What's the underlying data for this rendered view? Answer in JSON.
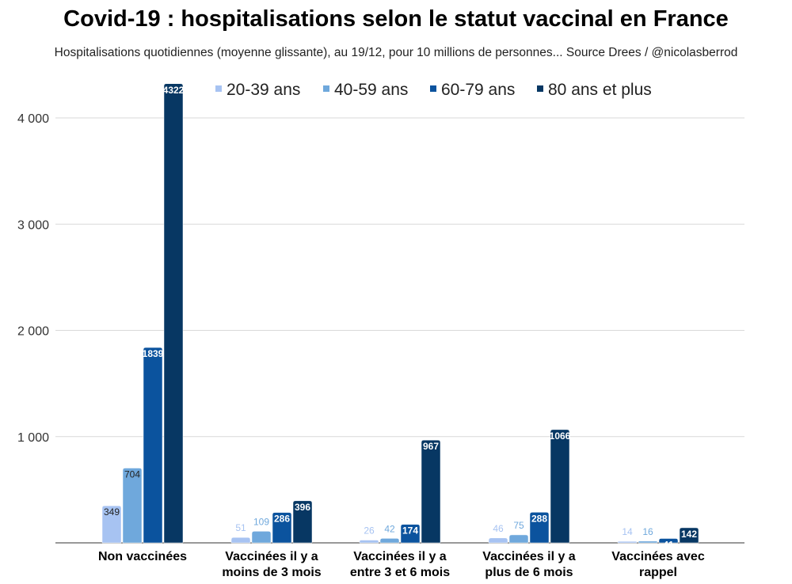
{
  "title": "Covid-19 : hospitalisations selon le statut vaccinal en France",
  "subtitle": "Hospitalisations quotidiennes (moyenne glissante), au 19/12, pour 10 millions de personnes... Source Drees / @nicolasberrod",
  "chart_data": {
    "type": "bar",
    "categories": [
      [
        "Non vaccinées"
      ],
      [
        "Vaccinées il y a",
        "moins de 3 mois"
      ],
      [
        "Vaccinées il y a",
        "entre 3 et 6 mois"
      ],
      [
        "Vaccinées il y a",
        "plus de 6 mois"
      ],
      [
        "Vaccinées avec",
        "rappel"
      ]
    ],
    "series": [
      {
        "name": "20-39 ans",
        "color": "#a7c3f2",
        "values": [
          349,
          51,
          26,
          46,
          14
        ]
      },
      {
        "name": "40-59 ans",
        "color": "#6fa8dc",
        "values": [
          704,
          109,
          42,
          75,
          16
        ]
      },
      {
        "name": "60-79 ans",
        "color": "#0b539e",
        "values": [
          1839,
          286,
          174,
          288,
          41
        ]
      },
      {
        "name": "80 ans et plus",
        "color": "#073763",
        "values": [
          4322,
          396,
          967,
          1066,
          142
        ]
      }
    ],
    "yticks": [
      1000,
      2000,
      3000,
      4000
    ],
    "ytick_labels": [
      "1 000",
      "2 000",
      "3 000",
      "4 000"
    ],
    "ylim": [
      0,
      4322
    ],
    "grid": true,
    "legend_position": "top"
  }
}
